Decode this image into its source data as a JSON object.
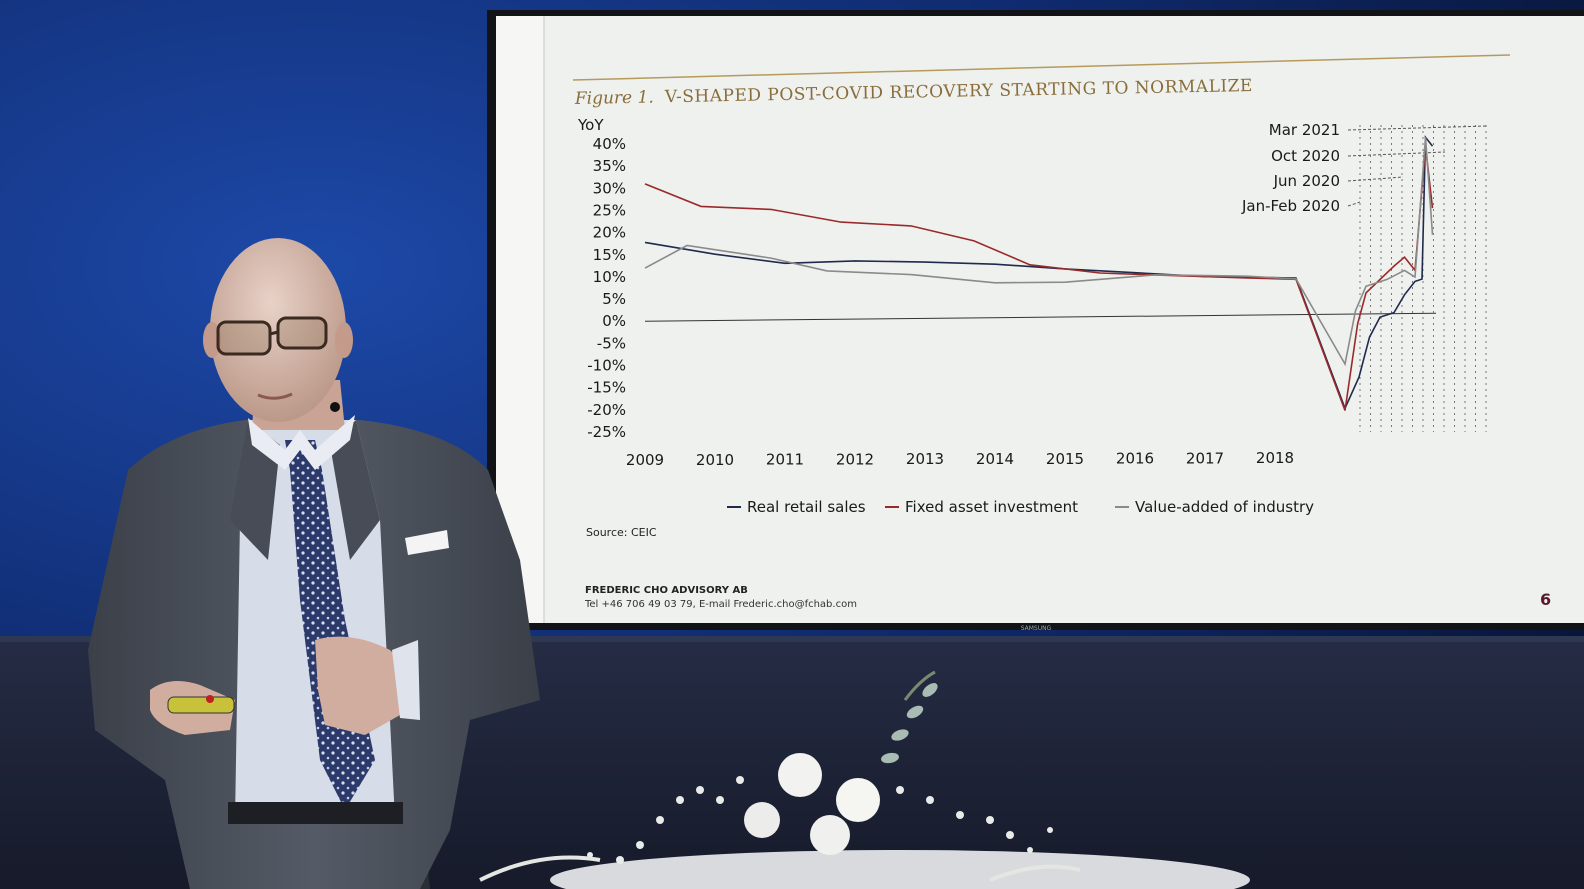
{
  "slide": {
    "figure_label": "Figure 1.",
    "figure_title": "V-SHAPED POST-COVID RECOVERY STARTING TO NORMALIZE",
    "source": "Source: CEIC",
    "footer_company": "FREDERIC CHO ADVISORY AB",
    "footer_contact": "Tel +46 706 49 03 79, E-mail Frederic.cho@fchab.com",
    "page_number": "6",
    "tv_brand": "SAMSUNG"
  },
  "chart_data": {
    "type": "line",
    "ylabel": "YoY",
    "y_ticks": [
      "40%",
      "35%",
      "30%",
      "25%",
      "20%",
      "15%",
      "10%",
      "5%",
      "0%",
      "-5%",
      "-10%",
      "-15%",
      "-20%",
      "-25%"
    ],
    "x_ticks": [
      "2009",
      "2010",
      "2011",
      "2012",
      "2013",
      "2014",
      "2015",
      "2016",
      "2017",
      "2018"
    ],
    "ylim": [
      -25,
      40
    ],
    "annotations": [
      "Mar 2021",
      "Oct 2020",
      "Jun 2020",
      "Jan-Feb 2020"
    ],
    "legend": [
      {
        "label": "Real retail sales",
        "color": "#1f2a4d"
      },
      {
        "label": "Fixed asset investment",
        "color": "#9a2a2a"
      },
      {
        "label": "Value-added of industry",
        "color": "#8a8a8a"
      }
    ],
    "series": [
      {
        "name": "Real retail sales",
        "color": "#1f2a4d",
        "points": [
          [
            2009.0,
            17.8
          ],
          [
            2010.0,
            15.0
          ],
          [
            2011.0,
            12.8
          ],
          [
            2012.0,
            13.2
          ],
          [
            2013.0,
            12.8
          ],
          [
            2014.0,
            12.2
          ],
          [
            2015.0,
            11.0
          ],
          [
            2016.0,
            10.0
          ],
          [
            2017.0,
            9.0
          ],
          [
            2018.3,
            8.5
          ],
          [
            2019.0,
            -21.0
          ],
          [
            2019.2,
            -14.0
          ],
          [
            2019.35,
            -5.0
          ],
          [
            2019.5,
            -0.5
          ],
          [
            2019.7,
            0.5
          ],
          [
            2019.85,
            4.5
          ],
          [
            2020.0,
            7.5
          ],
          [
            2020.1,
            8.0
          ],
          [
            2020.15,
            40.0
          ],
          [
            2020.25,
            38.0
          ]
        ]
      },
      {
        "name": "Fixed asset investment",
        "color": "#9a2a2a",
        "points": [
          [
            2009.0,
            31.0
          ],
          [
            2009.8,
            25.8
          ],
          [
            2010.8,
            25.0
          ],
          [
            2011.8,
            22.0
          ],
          [
            2012.8,
            21.0
          ],
          [
            2013.7,
            17.5
          ],
          [
            2014.5,
            12.0
          ],
          [
            2015.5,
            10.0
          ],
          [
            2016.5,
            9.3
          ],
          [
            2017.6,
            8.6
          ],
          [
            2018.3,
            8.2
          ],
          [
            2019.0,
            -21.5
          ],
          [
            2019.18,
            -2.0
          ],
          [
            2019.3,
            5.0
          ],
          [
            2019.5,
            8.0
          ],
          [
            2019.7,
            11.0
          ],
          [
            2019.85,
            13.0
          ],
          [
            2020.0,
            10.0
          ],
          [
            2020.15,
            38.0
          ],
          [
            2020.25,
            24.0
          ]
        ]
      },
      {
        "name": "Value-added of industry",
        "color": "#8a8a8a",
        "points": [
          [
            2009.0,
            12.0
          ],
          [
            2009.6,
            17.0
          ],
          [
            2010.8,
            14.0
          ],
          [
            2011.6,
            11.0
          ],
          [
            2012.8,
            10.0
          ],
          [
            2014.0,
            8.0
          ],
          [
            2015.0,
            8.0
          ],
          [
            2016.3,
            9.5
          ],
          [
            2017.6,
            9.0
          ],
          [
            2018.3,
            8.3
          ],
          [
            2019.0,
            -11.0
          ],
          [
            2019.15,
            1.0
          ],
          [
            2019.3,
            6.5
          ],
          [
            2019.6,
            8.0
          ],
          [
            2019.85,
            10.0
          ],
          [
            2020.0,
            8.5
          ],
          [
            2020.15,
            40.0
          ],
          [
            2020.25,
            18.0
          ]
        ]
      }
    ]
  }
}
